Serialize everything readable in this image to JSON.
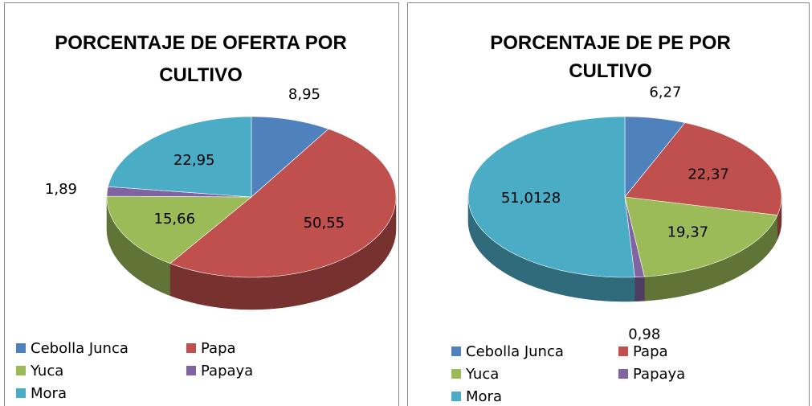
{
  "chart_data": [
    {
      "type": "pie",
      "title": "PORCENTAJE DE OFERTA POR CULTIVO",
      "categories": [
        "Cebolla Junca",
        "Papa",
        "Yuca",
        "Papaya",
        "Mora"
      ],
      "values": [
        8.95,
        50.55,
        15.66,
        1.89,
        22.95
      ],
      "value_labels": [
        "8,95",
        "50,55",
        "15,66",
        "1,89",
        "22,95"
      ],
      "colors": [
        "#4f81bd",
        "#c0504d",
        "#9bbb59",
        "#8064a2",
        "#4bacc6"
      ],
      "legend": "bottom"
    },
    {
      "type": "pie",
      "title": "PORCENTAJE DE PE POR CULTIVO",
      "categories": [
        "Cebolla Junca",
        "Papa",
        "Yuca",
        "Papaya",
        "Mora"
      ],
      "values": [
        6.27,
        22.37,
        19.37,
        0.98,
        51.0128
      ],
      "value_labels": [
        "6,27",
        "22,37",
        "19,37",
        "0,98",
        "51,0128"
      ],
      "colors": [
        "#4f81bd",
        "#c0504d",
        "#9bbb59",
        "#8064a2",
        "#4bacc6"
      ],
      "legend": "bottom"
    }
  ]
}
